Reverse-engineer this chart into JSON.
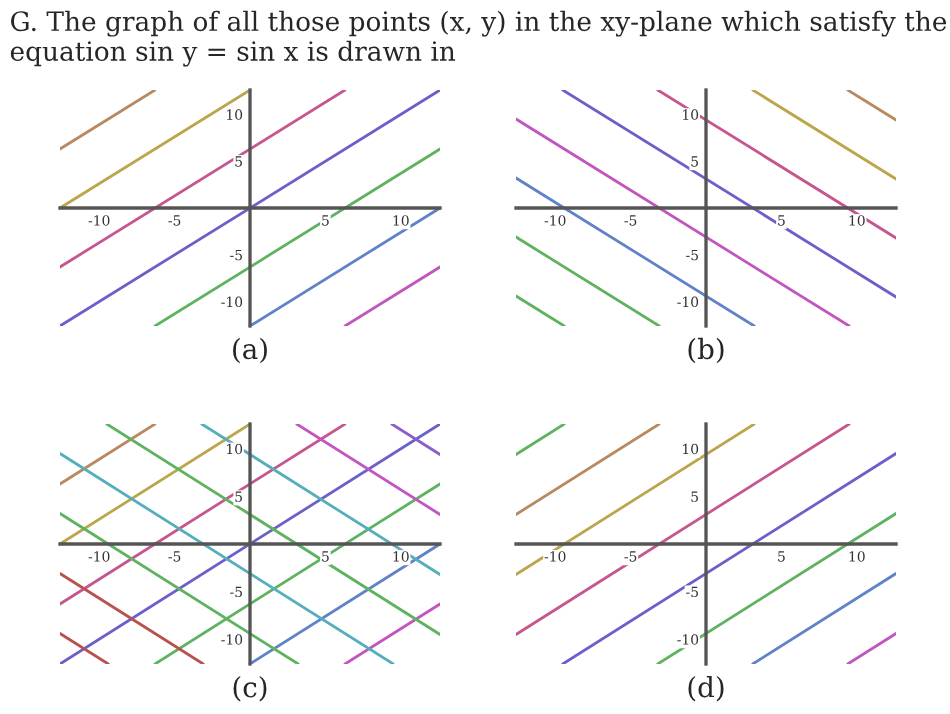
{
  "chart_data": [
    {
      "type": "line",
      "xlabel": "(a)",
      "annotations": [
        "G. The graph of all those points (x, y) in the xy-plane which satisfy the equation sin y = sin x is drawn in"
      ],
      "xlim": [
        -12.6,
        12.6
      ],
      "ylim": [
        -12.6,
        12.6
      ],
      "xticks": [
        -10,
        -5,
        5,
        10
      ],
      "yticks": [
        -10,
        -5,
        5,
        10
      ],
      "series": [
        {
          "color": "#6b5fc9",
          "x": [
            -12.6,
            12.6
          ],
          "values": [
            -12.6,
            12.6
          ]
        },
        {
          "color": "#c5568e",
          "x": [
            -12.6,
            6.3
          ],
          "values": [
            -6.3,
            12.6
          ]
        },
        {
          "color": "#bba64c",
          "x": [
            -12.6,
            0
          ],
          "values": [
            0,
            12.6
          ]
        },
        {
          "color": "#b98961",
          "x": [
            -12.6,
            -6.3
          ],
          "values": [
            6.3,
            12.6
          ]
        },
        {
          "color": "#5fb360",
          "x": [
            -6.3,
            12.6
          ],
          "values": [
            -12.6,
            6.3
          ]
        },
        {
          "color": "#5f82c9",
          "x": [
            0,
            12.6
          ],
          "values": [
            -12.6,
            0
          ]
        },
        {
          "color": "#c256c0",
          "x": [
            6.3,
            12.6
          ],
          "values": [
            -12.6,
            -6.3
          ]
        }
      ]
    },
    {
      "type": "line",
      "xlabel": "(b)",
      "xlim": [
        -12.6,
        12.6
      ],
      "ylim": [
        -12.6,
        12.6
      ],
      "xticks": [
        -10,
        -5,
        5,
        10
      ],
      "yticks": [
        -10,
        -5,
        5,
        10
      ],
      "series": [
        {
          "color": "#6b5fc9",
          "x": [
            -9.5,
            12.6
          ],
          "values": [
            12.6,
            -9.5
          ]
        },
        {
          "color": "#c5568e",
          "x": [
            -3.2,
            12.6
          ],
          "values": [
            12.6,
            -3.2
          ]
        },
        {
          "color": "#bba64c",
          "x": [
            3.1,
            12.6
          ],
          "values": [
            12.6,
            3.1
          ]
        },
        {
          "color": "#b98961",
          "x": [
            9.4,
            12.6
          ],
          "values": [
            12.6,
            9.4
          ]
        },
        {
          "color": "#c256c0",
          "x": [
            -12.6,
            9.5
          ],
          "values": [
            9.5,
            -12.6
          ]
        },
        {
          "color": "#5f82c9",
          "x": [
            -12.6,
            3.2
          ],
          "values": [
            3.2,
            -12.6
          ]
        },
        {
          "color": "#5fb360",
          "x": [
            -12.6,
            -3.1
          ],
          "values": [
            -3.1,
            -12.6
          ]
        },
        {
          "color": "#5fb360",
          "x": [
            -12.6,
            -9.4
          ],
          "values": [
            -9.4,
            -12.6
          ]
        }
      ]
    },
    {
      "type": "line",
      "xlabel": "(c)",
      "xlim": [
        -12.6,
        12.6
      ],
      "ylim": [
        -12.6,
        12.6
      ],
      "xticks": [
        -10,
        -5,
        5,
        10
      ],
      "yticks": [
        -10,
        -5,
        5,
        10
      ],
      "series": [
        {
          "color": "#6b5fc9",
          "x": [
            -12.6,
            12.6
          ],
          "values": [
            -12.6,
            12.6
          ]
        },
        {
          "color": "#c5568e",
          "x": [
            -12.6,
            6.3
          ],
          "values": [
            -6.3,
            12.6
          ]
        },
        {
          "color": "#bba64c",
          "x": [
            -12.6,
            0
          ],
          "values": [
            0,
            12.6
          ]
        },
        {
          "color": "#b98961",
          "x": [
            -12.6,
            -6.3
          ],
          "values": [
            6.3,
            12.6
          ]
        },
        {
          "color": "#5fb360",
          "x": [
            -6.3,
            12.6
          ],
          "values": [
            -12.6,
            6.3
          ]
        },
        {
          "color": "#5f82c9",
          "x": [
            0,
            12.6
          ],
          "values": [
            -12.6,
            0
          ]
        },
        {
          "color": "#c256c0",
          "x": [
            6.3,
            12.6
          ],
          "values": [
            -12.6,
            -6.3
          ]
        },
        {
          "color": "#5fb360",
          "x": [
            -9.5,
            12.6
          ],
          "values": [
            12.6,
            -9.5
          ]
        },
        {
          "color": "#56aebd",
          "x": [
            -3.2,
            12.6
          ],
          "values": [
            12.6,
            -3.2
          ]
        },
        {
          "color": "#c256c0",
          "x": [
            3.1,
            12.6
          ],
          "values": [
            12.6,
            3.1
          ]
        },
        {
          "color": "#8a5fc9",
          "x": [
            9.4,
            12.6
          ],
          "values": [
            12.6,
            9.4
          ]
        },
        {
          "color": "#56aebd",
          "x": [
            -12.6,
            9.5
          ],
          "values": [
            9.5,
            -12.6
          ]
        },
        {
          "color": "#5fb360",
          "x": [
            -12.6,
            3.2
          ],
          "values": [
            3.2,
            -12.6
          ]
        },
        {
          "color": "#b7524e",
          "x": [
            -12.6,
            -3.1
          ],
          "values": [
            -3.1,
            -12.6
          ]
        },
        {
          "color": "#b7524e",
          "x": [
            -12.6,
            -9.4
          ],
          "values": [
            -9.4,
            -12.6
          ]
        }
      ]
    },
    {
      "type": "line",
      "xlabel": "(d)",
      "xlim": [
        -12.6,
        12.6
      ],
      "ylim": [
        -12.6,
        12.6
      ],
      "xticks": [
        -10,
        -5,
        5,
        10
      ],
      "yticks": [
        -10,
        -5,
        5,
        10
      ],
      "series": [
        {
          "color": "#6b5fc9",
          "x": [
            -9.5,
            12.6
          ],
          "values": [
            -12.6,
            9.5
          ]
        },
        {
          "color": "#c5568e",
          "x": [
            -12.6,
            9.5
          ],
          "values": [
            -9.5,
            12.6
          ]
        },
        {
          "color": "#bba64c",
          "x": [
            -12.6,
            3.2
          ],
          "values": [
            -3.2,
            12.6
          ]
        },
        {
          "color": "#b98961",
          "x": [
            -12.6,
            -3.1
          ],
          "values": [
            3.1,
            12.6
          ]
        },
        {
          "color": "#5fb360",
          "x": [
            -12.6,
            -9.4
          ],
          "values": [
            9.4,
            12.6
          ]
        },
        {
          "color": "#5fb360",
          "x": [
            -3.2,
            12.6
          ],
          "values": [
            -12.6,
            3.2
          ]
        },
        {
          "color": "#5f82c9",
          "x": [
            3.1,
            12.6
          ],
          "values": [
            -12.6,
            -3.1
          ]
        },
        {
          "color": "#c256c0",
          "x": [
            9.4,
            12.6
          ],
          "values": [
            -12.6,
            -9.4
          ]
        }
      ]
    }
  ]
}
